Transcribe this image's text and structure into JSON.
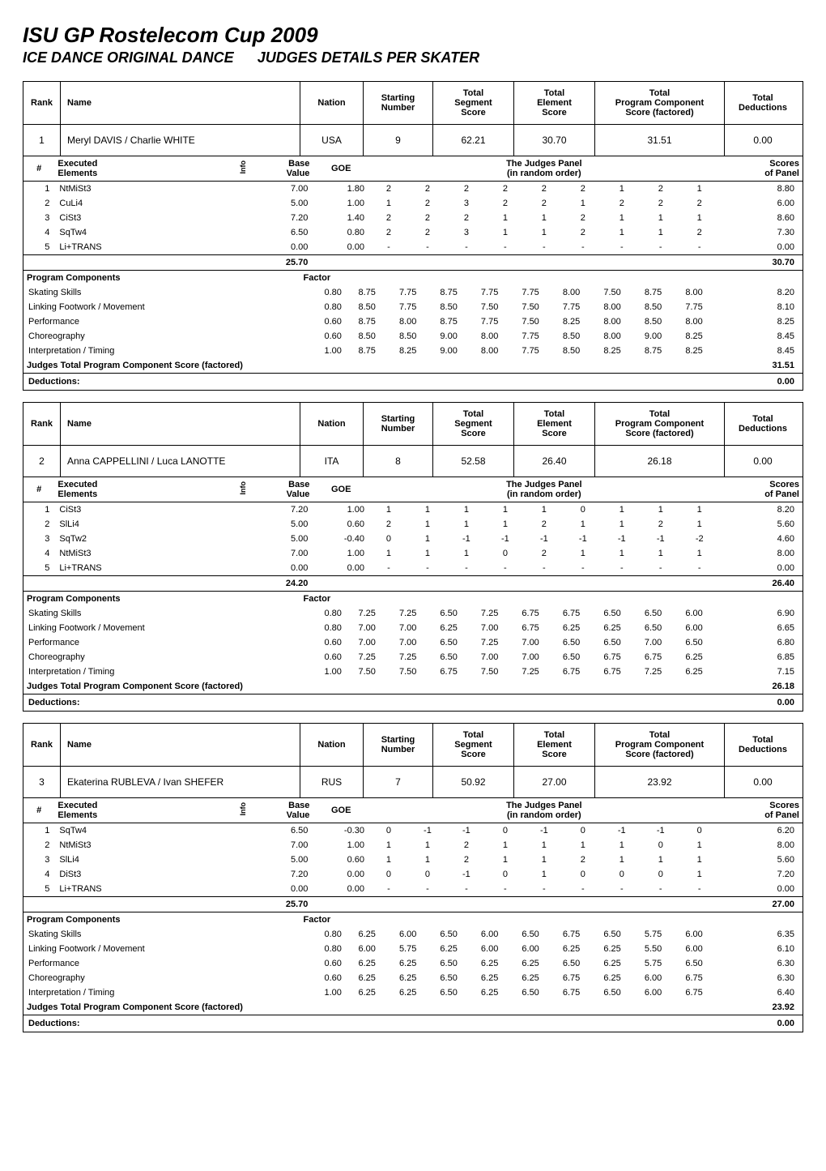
{
  "page_title": "ISU GP Rostelecom Cup 2009",
  "discipline": "ICE DANCE ORIGINAL DANCE",
  "detail_heading": "JUDGES DETAILS PER SKATER",
  "hdr_labels": {
    "rank": "Rank",
    "name": "Name",
    "nation": "Nation",
    "starting_number_l1": "Starting",
    "starting_number_l2": "Number",
    "total_segment_l1": "Total",
    "total_segment_l2": "Segment",
    "total_segment_l3": "Score",
    "total_element_l1": "Total",
    "total_element_l2": "Element",
    "total_element_l3": "Score",
    "total_pc_l1": "Total",
    "total_pc_l2": "Program Component",
    "total_pc_l3": "Score (factored)",
    "total_ded_l1": "Total",
    "total_ded_l2": "Deductions"
  },
  "elem_hdr": {
    "num": "#",
    "executed_l1": "Executed",
    "executed_l2": "Elements",
    "info": "Info",
    "base_l1": "Base",
    "base_l2": "Value",
    "goe": "GOE",
    "judges_l1": "The Judges Panel",
    "judges_l2": "(in random order)",
    "scores_l1": "Scores",
    "scores_l2": "of Panel"
  },
  "pc_hdr": {
    "label": "Program Components",
    "factor": "Factor",
    "total_label": "Judges Total Program Component Score (factored)",
    "deductions_label": "Deductions:"
  },
  "skaters": [
    {
      "rank": "1",
      "name": "Meryl DAVIS / Charlie WHITE",
      "nation": "USA",
      "start_no": "9",
      "seg_score": "62.21",
      "elem_score": "30.70",
      "pc_score": "31.51",
      "ded": "0.00",
      "elements": [
        {
          "n": "1",
          "name": "NtMiSt3",
          "bv": "7.00",
          "goe": "1.80",
          "j": [
            "2",
            "2",
            "2",
            "2",
            "2",
            "2",
            "1",
            "2",
            "1"
          ],
          "score": "8.80"
        },
        {
          "n": "2",
          "name": "CuLi4",
          "bv": "5.00",
          "goe": "1.00",
          "j": [
            "1",
            "2",
            "3",
            "2",
            "2",
            "1",
            "2",
            "2",
            "2"
          ],
          "score": "6.00"
        },
        {
          "n": "3",
          "name": "CiSt3",
          "bv": "7.20",
          "goe": "1.40",
          "j": [
            "2",
            "2",
            "2",
            "1",
            "1",
            "2",
            "1",
            "1",
            "1"
          ],
          "score": "8.60"
        },
        {
          "n": "4",
          "name": "SqTw4",
          "bv": "6.50",
          "goe": "0.80",
          "j": [
            "2",
            "2",
            "3",
            "1",
            "1",
            "2",
            "1",
            "1",
            "2"
          ],
          "score": "7.30"
        },
        {
          "n": "5",
          "name": "Li+TRANS",
          "bv": "0.00",
          "goe": "0.00",
          "j": [
            "-",
            "-",
            "-",
            "-",
            "-",
            "-",
            "-",
            "-",
            "-"
          ],
          "score": "0.00"
        }
      ],
      "bv_total": "25.70",
      "elem_total": "30.70",
      "pc": [
        {
          "name": "Skating Skills",
          "factor": "0.80",
          "j": [
            "8.75",
            "7.75",
            "8.75",
            "7.75",
            "7.75",
            "8.00",
            "7.50",
            "8.75",
            "8.00"
          ],
          "score": "8.20"
        },
        {
          "name": "Linking Footwork / Movement",
          "factor": "0.80",
          "j": [
            "8.50",
            "7.75",
            "8.50",
            "7.50",
            "7.50",
            "7.75",
            "8.00",
            "8.50",
            "7.75"
          ],
          "score": "8.10"
        },
        {
          "name": "Performance",
          "factor": "0.60",
          "j": [
            "8.75",
            "8.00",
            "8.75",
            "7.75",
            "7.50",
            "8.25",
            "8.00",
            "8.50",
            "8.00"
          ],
          "score": "8.25"
        },
        {
          "name": "Choreography",
          "factor": "0.60",
          "j": [
            "8.50",
            "8.50",
            "9.00",
            "8.00",
            "7.75",
            "8.50",
            "8.00",
            "9.00",
            "8.25"
          ],
          "score": "8.45"
        },
        {
          "name": "Interpretation / Timing",
          "factor": "1.00",
          "j": [
            "8.75",
            "8.25",
            "9.00",
            "8.00",
            "7.75",
            "8.50",
            "8.25",
            "8.75",
            "8.25"
          ],
          "score": "8.45"
        }
      ],
      "pc_total": "31.51",
      "ded_total": "0.00"
    },
    {
      "rank": "2",
      "name": "Anna CAPPELLINI / Luca LANOTTE",
      "nation": "ITA",
      "start_no": "8",
      "seg_score": "52.58",
      "elem_score": "26.40",
      "pc_score": "26.18",
      "ded": "0.00",
      "elements": [
        {
          "n": "1",
          "name": "CiSt3",
          "bv": "7.20",
          "goe": "1.00",
          "j": [
            "1",
            "1",
            "1",
            "1",
            "1",
            "0",
            "1",
            "1",
            "1"
          ],
          "score": "8.20"
        },
        {
          "n": "2",
          "name": "SlLi4",
          "bv": "5.00",
          "goe": "0.60",
          "j": [
            "2",
            "1",
            "1",
            "1",
            "2",
            "1",
            "1",
            "2",
            "1"
          ],
          "score": "5.60"
        },
        {
          "n": "3",
          "name": "SqTw2",
          "bv": "5.00",
          "goe": "-0.40",
          "j": [
            "0",
            "1",
            "-1",
            "-1",
            "-1",
            "-1",
            "-1",
            "-1",
            "-2"
          ],
          "score": "4.60"
        },
        {
          "n": "4",
          "name": "NtMiSt3",
          "bv": "7.00",
          "goe": "1.00",
          "j": [
            "1",
            "1",
            "1",
            "0",
            "2",
            "1",
            "1",
            "1",
            "1"
          ],
          "score": "8.00"
        },
        {
          "n": "5",
          "name": "Li+TRANS",
          "bv": "0.00",
          "goe": "0.00",
          "j": [
            "-",
            "-",
            "-",
            "-",
            "-",
            "-",
            "-",
            "-",
            "-"
          ],
          "score": "0.00"
        }
      ],
      "bv_total": "24.20",
      "elem_total": "26.40",
      "pc": [
        {
          "name": "Skating Skills",
          "factor": "0.80",
          "j": [
            "7.25",
            "7.25",
            "6.50",
            "7.25",
            "6.75",
            "6.75",
            "6.50",
            "6.50",
            "6.00"
          ],
          "score": "6.90"
        },
        {
          "name": "Linking Footwork / Movement",
          "factor": "0.80",
          "j": [
            "7.00",
            "7.00",
            "6.25",
            "7.00",
            "6.75",
            "6.25",
            "6.25",
            "6.50",
            "6.00"
          ],
          "score": "6.65"
        },
        {
          "name": "Performance",
          "factor": "0.60",
          "j": [
            "7.00",
            "7.00",
            "6.50",
            "7.25",
            "7.00",
            "6.50",
            "6.50",
            "7.00",
            "6.50"
          ],
          "score": "6.80"
        },
        {
          "name": "Choreography",
          "factor": "0.60",
          "j": [
            "7.25",
            "7.25",
            "6.50",
            "7.00",
            "7.00",
            "6.50",
            "6.75",
            "6.75",
            "6.25"
          ],
          "score": "6.85"
        },
        {
          "name": "Interpretation / Timing",
          "factor": "1.00",
          "j": [
            "7.50",
            "7.50",
            "6.75",
            "7.50",
            "7.25",
            "6.75",
            "6.75",
            "7.25",
            "6.25"
          ],
          "score": "7.15"
        }
      ],
      "pc_total": "26.18",
      "ded_total": "0.00"
    },
    {
      "rank": "3",
      "name": "Ekaterina RUBLEVA / Ivan SHEFER",
      "nation": "RUS",
      "start_no": "7",
      "seg_score": "50.92",
      "elem_score": "27.00",
      "pc_score": "23.92",
      "ded": "0.00",
      "elements": [
        {
          "n": "1",
          "name": "SqTw4",
          "bv": "6.50",
          "goe": "-0.30",
          "j": [
            "0",
            "-1",
            "-1",
            "0",
            "-1",
            "0",
            "-1",
            "-1",
            "0"
          ],
          "score": "6.20"
        },
        {
          "n": "2",
          "name": "NtMiSt3",
          "bv": "7.00",
          "goe": "1.00",
          "j": [
            "1",
            "1",
            "2",
            "1",
            "1",
            "1",
            "1",
            "0",
            "1"
          ],
          "score": "8.00"
        },
        {
          "n": "3",
          "name": "SlLi4",
          "bv": "5.00",
          "goe": "0.60",
          "j": [
            "1",
            "1",
            "2",
            "1",
            "1",
            "2",
            "1",
            "1",
            "1"
          ],
          "score": "5.60"
        },
        {
          "n": "4",
          "name": "DiSt3",
          "bv": "7.20",
          "goe": "0.00",
          "j": [
            "0",
            "0",
            "-1",
            "0",
            "1",
            "0",
            "0",
            "0",
            "1"
          ],
          "score": "7.20"
        },
        {
          "n": "5",
          "name": "Li+TRANS",
          "bv": "0.00",
          "goe": "0.00",
          "j": [
            "-",
            "-",
            "-",
            "-",
            "-",
            "-",
            "-",
            "-",
            "-"
          ],
          "score": "0.00"
        }
      ],
      "bv_total": "25.70",
      "elem_total": "27.00",
      "pc": [
        {
          "name": "Skating Skills",
          "factor": "0.80",
          "j": [
            "6.25",
            "6.00",
            "6.50",
            "6.00",
            "6.50",
            "6.75",
            "6.50",
            "5.75",
            "6.00"
          ],
          "score": "6.35"
        },
        {
          "name": "Linking Footwork / Movement",
          "factor": "0.80",
          "j": [
            "6.00",
            "5.75",
            "6.25",
            "6.00",
            "6.00",
            "6.25",
            "6.25",
            "5.50",
            "6.00"
          ],
          "score": "6.10"
        },
        {
          "name": "Performance",
          "factor": "0.60",
          "j": [
            "6.25",
            "6.25",
            "6.50",
            "6.25",
            "6.25",
            "6.50",
            "6.25",
            "5.75",
            "6.50"
          ],
          "score": "6.30"
        },
        {
          "name": "Choreography",
          "factor": "0.60",
          "j": [
            "6.25",
            "6.25",
            "6.50",
            "6.25",
            "6.25",
            "6.75",
            "6.25",
            "6.00",
            "6.75"
          ],
          "score": "6.30"
        },
        {
          "name": "Interpretation / Timing",
          "factor": "1.00",
          "j": [
            "6.25",
            "6.25",
            "6.50",
            "6.25",
            "6.50",
            "6.75",
            "6.50",
            "6.00",
            "6.75"
          ],
          "score": "6.40"
        }
      ],
      "pc_total": "23.92",
      "ded_total": "0.00"
    }
  ]
}
